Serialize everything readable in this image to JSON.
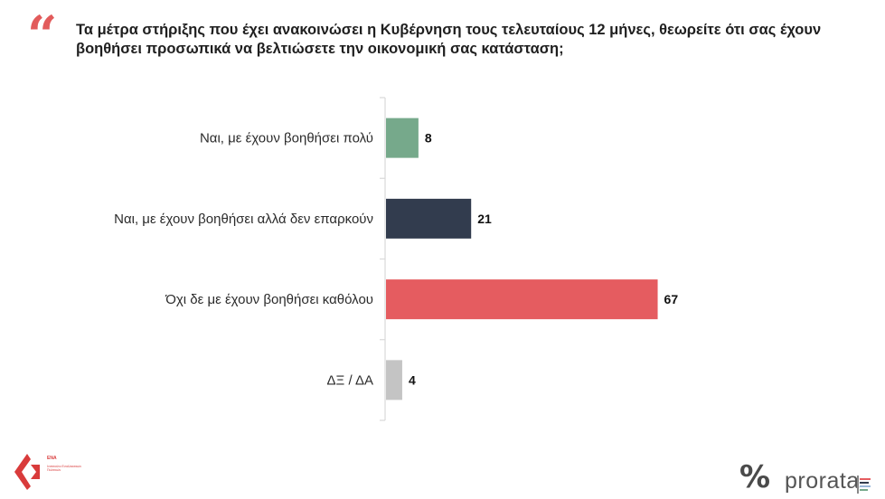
{
  "header": {
    "quote_glyph": "“",
    "question": "Τα μέτρα στήριξης που έχει ανακοινώσει η Κυβέρνηση τους τελευταίους 12 μήνες, θεωρείτε ότι σας έχουν βοηθήσει προσωπικά να βελτιώσετε την οικονομική σας κατάσταση;"
  },
  "chart_data": {
    "type": "bar",
    "orientation": "horizontal",
    "categories": [
      "Ναι, με έχουν βοηθήσει πολύ",
      "Ναι, με έχουν βοηθήσει αλλά δεν επαρκούν",
      "Όχι δε με έχουν βοηθήσει καθόλου",
      "ΔΞ / ΔΑ"
    ],
    "values": [
      8,
      21,
      67,
      4
    ],
    "colors": [
      "#76a98b",
      "#323c4e",
      "#e55c60",
      "#c4c4c4"
    ],
    "xlim": [
      0,
      70
    ],
    "grid": false,
    "axis_color": "#d9d9d9"
  },
  "footer": {
    "left_logo_title": "ΕΝΑ",
    "left_logo_subtitle": "Ινστιτούτο Εναλλακτικών Πολιτικών",
    "pct_mark": "%",
    "brand": "prorata",
    "brand_bar_colors": [
      "#e55c60",
      "#323c4e",
      "#9bb7d9",
      "#76a98b"
    ]
  }
}
